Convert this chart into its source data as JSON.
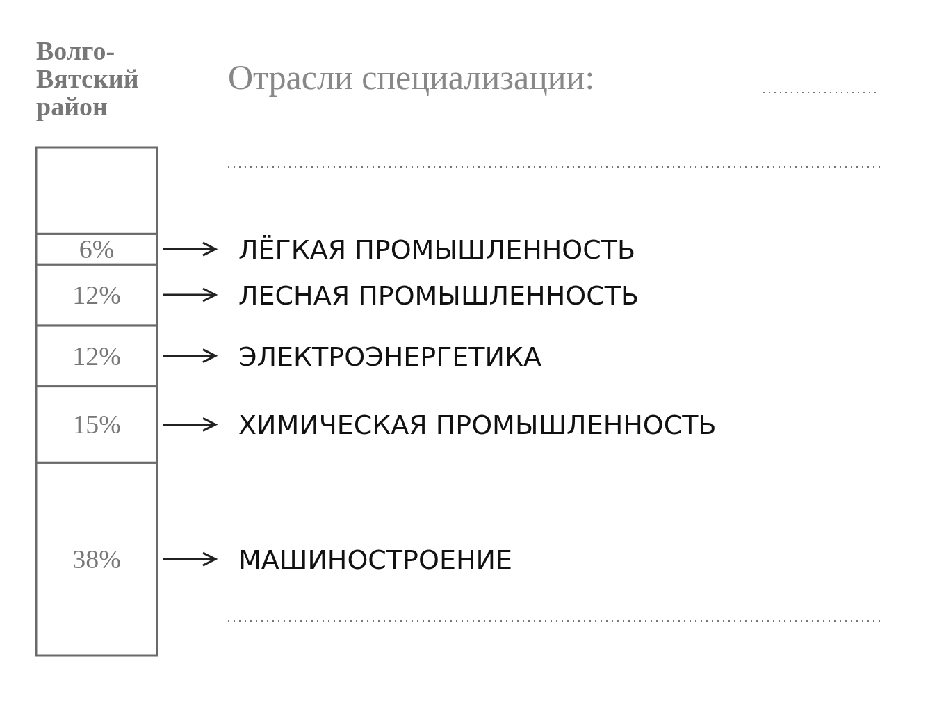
{
  "chart_data": {
    "type": "bar",
    "stacked": true,
    "title": "Волго-Вятский район",
    "subtitle": "Отрасли специализации:",
    "categories": [
      null
    ],
    "series": [
      {
        "name": "МАШИНОСТРОЕНИЕ",
        "color": "#ffffff",
        "values": [
          38
        ],
        "value_labels": [
          "38%"
        ]
      },
      {
        "name": "ХИМИЧЕСКАЯ ПРОМЫШЛЕННОСТЬ",
        "color": "#ffffff",
        "values": [
          15
        ],
        "value_labels": [
          "15%"
        ]
      },
      {
        "name": "ЭЛЕКТРОЭНЕРГЕТИКА",
        "color": "#ffffff",
        "values": [
          12
        ],
        "value_labels": [
          "12%"
        ]
      },
      {
        "name": "ЛЕСНАЯ ПРОМЫШЛЕННОСТЬ",
        "color": "#ffffff",
        "values": [
          12
        ],
        "value_labels": [
          "12%"
        ]
      },
      {
        "name": "ЛЁГКАЯ ПРОМЫШЛЕННОСТЬ",
        "color": "#ffffff",
        "values": [
          6
        ],
        "value_labels": [
          "6%"
        ]
      },
      {
        "color": "#ffffff",
        "values": [
          17
        ],
        "value_labels": [
          null
        ]
      }
    ]
  }
}
